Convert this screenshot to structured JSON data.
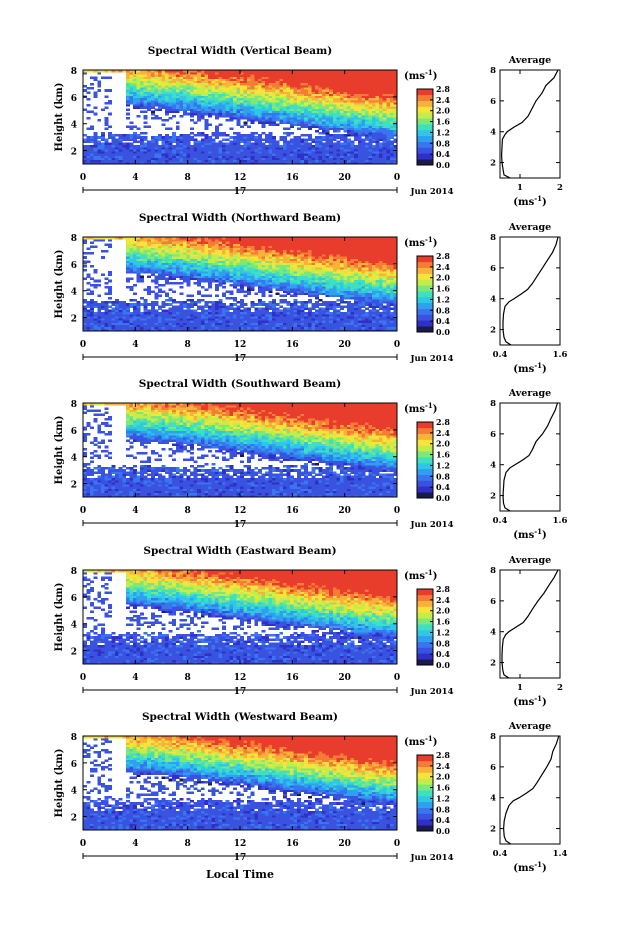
{
  "figure": {
    "xlabel": "Local Time",
    "date_label": "Jun 2014",
    "day_label": "17"
  },
  "colorbar": {
    "unit": "(ms",
    "unit_exp": "-1",
    "unit_close": ")",
    "colors": [
      "#1a1a4d",
      "#3030c8",
      "#3a52e0",
      "#3a75f0",
      "#2fa0f0",
      "#2ec8e6",
      "#3ee0c0",
      "#7ae87a",
      "#c6ec4a",
      "#f6e43a",
      "#f8b23a",
      "#f47c34",
      "#e83c2c"
    ]
  },
  "chart_data": [
    {
      "type": "heatmap",
      "title": "Spectral Width (Vertical Beam)",
      "ylabel": "Height (km)",
      "x_ticks": [
        "0",
        "4",
        "8",
        "12",
        "16",
        "20",
        "0"
      ],
      "xlim": [
        0,
        24
      ],
      "ylim": [
        1,
        8
      ],
      "y_ticks": [
        "2",
        "4",
        "6",
        "8"
      ],
      "colorbar_ticks": [
        "2.8",
        "2.4",
        "2.0",
        "1.6",
        "1.2",
        "0.8",
        "0.4",
        "0.0"
      ],
      "colorbar_range": [
        0.0,
        2.8
      ],
      "profile": {
        "title": "Average",
        "xlabel": "(ms",
        "xlabel_exp": "-1",
        "xlabel_close": ")",
        "x_ticks": [
          "1",
          "2"
        ],
        "xlim": [
          0.5,
          2.0
        ],
        "height": [
          1.0,
          1.2,
          1.5,
          2.0,
          2.5,
          3.0,
          3.5,
          3.8,
          4.0,
          4.3,
          4.6,
          5.0,
          5.5,
          6.0,
          6.5,
          7.0,
          7.5,
          8.0
        ],
        "value": [
          0.75,
          0.6,
          0.58,
          0.55,
          0.54,
          0.55,
          0.56,
          0.62,
          0.68,
          0.85,
          1.05,
          1.2,
          1.3,
          1.4,
          1.55,
          1.65,
          1.85,
          1.95
        ]
      }
    },
    {
      "type": "heatmap",
      "title": "Spectral Width (Northward Beam)",
      "ylabel": "Height (km)",
      "x_ticks": [
        "0",
        "4",
        "8",
        "12",
        "16",
        "20",
        "0"
      ],
      "xlim": [
        0,
        24
      ],
      "ylim": [
        1,
        8
      ],
      "y_ticks": [
        "2",
        "4",
        "6",
        "8"
      ],
      "colorbar_ticks": [
        "2.8",
        "2.4",
        "2.0",
        "1.6",
        "1.2",
        "0.8",
        "0.4",
        "0.0"
      ],
      "colorbar_range": [
        0.0,
        2.8
      ],
      "profile": {
        "title": "Average",
        "xlabel": "(ms",
        "xlabel_exp": "-1",
        "xlabel_close": ")",
        "x_ticks": [
          "0.4",
          "1.6"
        ],
        "xlim": [
          0.4,
          1.6
        ],
        "height": [
          1.0,
          1.2,
          1.5,
          2.0,
          2.5,
          3.0,
          3.5,
          3.8,
          4.0,
          4.3,
          4.6,
          5.0,
          5.5,
          6.0,
          6.5,
          7.0,
          7.5,
          8.0
        ],
        "value": [
          0.62,
          0.52,
          0.48,
          0.46,
          0.46,
          0.47,
          0.5,
          0.58,
          0.68,
          0.82,
          0.95,
          1.05,
          1.15,
          1.25,
          1.35,
          1.45,
          1.52,
          1.56
        ]
      }
    },
    {
      "type": "heatmap",
      "title": "Spectral Width (Southward Beam)",
      "ylabel": "Height (km)",
      "x_ticks": [
        "0",
        "4",
        "8",
        "12",
        "16",
        "20",
        "0"
      ],
      "xlim": [
        0,
        24
      ],
      "ylim": [
        1,
        8
      ],
      "y_ticks": [
        "2",
        "4",
        "6",
        "8"
      ],
      "colorbar_ticks": [
        "2.8",
        "2.4",
        "2.0",
        "1.6",
        "1.2",
        "0.8",
        "0.4",
        "0.0"
      ],
      "colorbar_range": [
        0.0,
        2.8
      ],
      "profile": {
        "title": "Average",
        "xlabel": "(ms",
        "xlabel_exp": "-1",
        "xlabel_close": ")",
        "x_ticks": [
          "0.4",
          "1.6"
        ],
        "xlim": [
          0.4,
          1.6
        ],
        "height": [
          1.0,
          1.2,
          1.5,
          2.0,
          2.5,
          3.0,
          3.5,
          3.8,
          4.0,
          4.3,
          4.6,
          5.0,
          5.5,
          6.0,
          6.5,
          7.0,
          7.5,
          8.0
        ],
        "value": [
          0.6,
          0.5,
          0.47,
          0.46,
          0.47,
          0.48,
          0.52,
          0.6,
          0.7,
          0.85,
          0.98,
          1.05,
          1.12,
          1.25,
          1.35,
          1.42,
          1.5,
          1.55
        ]
      }
    },
    {
      "type": "heatmap",
      "title": "Spectral Width (Eastward Beam)",
      "ylabel": "Height (km)",
      "x_ticks": [
        "0",
        "4",
        "8",
        "12",
        "16",
        "20",
        "0"
      ],
      "xlim": [
        0,
        24
      ],
      "ylim": [
        1,
        8
      ],
      "y_ticks": [
        "2",
        "4",
        "6",
        "8"
      ],
      "colorbar_ticks": [
        "2.8",
        "2.4",
        "2.0",
        "1.6",
        "1.2",
        "0.8",
        "0.4",
        "0.0"
      ],
      "colorbar_range": [
        0.0,
        2.8
      ],
      "profile": {
        "title": "Average",
        "xlabel": "(ms",
        "xlabel_exp": "-1",
        "xlabel_close": ")",
        "x_ticks": [
          "1",
          "2"
        ],
        "xlim": [
          0.5,
          2.0
        ],
        "height": [
          1.0,
          1.2,
          1.5,
          2.0,
          2.5,
          3.0,
          3.5,
          3.8,
          4.0,
          4.3,
          4.6,
          5.0,
          5.5,
          6.0,
          6.5,
          7.0,
          7.5,
          8.0
        ],
        "value": [
          0.72,
          0.6,
          0.57,
          0.55,
          0.55,
          0.56,
          0.58,
          0.64,
          0.72,
          0.9,
          1.08,
          1.2,
          1.32,
          1.45,
          1.6,
          1.72,
          1.85,
          1.95
        ]
      }
    },
    {
      "type": "heatmap",
      "title": "Spectral Width (Westward Beam)",
      "ylabel": "Height (km)",
      "x_ticks": [
        "0",
        "4",
        "8",
        "12",
        "16",
        "20",
        "0"
      ],
      "xlim": [
        0,
        24
      ],
      "ylim": [
        1,
        8
      ],
      "y_ticks": [
        "2",
        "4",
        "6",
        "8"
      ],
      "colorbar_ticks": [
        "2.8",
        "2.4",
        "2.0",
        "1.6",
        "1.2",
        "0.8",
        "0.4",
        "0.0"
      ],
      "colorbar_range": [
        0.0,
        2.8
      ],
      "profile": {
        "title": "Average",
        "xlabel": "(ms",
        "xlabel_exp": "-1",
        "xlabel_close": ")",
        "x_ticks": [
          "0.4",
          "1.4"
        ],
        "xlim": [
          0.4,
          1.4
        ],
        "height": [
          1.0,
          1.2,
          1.5,
          2.0,
          2.5,
          3.0,
          3.5,
          3.8,
          4.0,
          4.3,
          4.6,
          5.0,
          5.5,
          6.0,
          6.5,
          7.0,
          7.5,
          8.0
        ],
        "value": [
          0.58,
          0.5,
          0.47,
          0.46,
          0.47,
          0.5,
          0.55,
          0.62,
          0.72,
          0.84,
          0.95,
          1.02,
          1.1,
          1.18,
          1.25,
          1.28,
          1.34,
          1.38
        ]
      }
    }
  ]
}
